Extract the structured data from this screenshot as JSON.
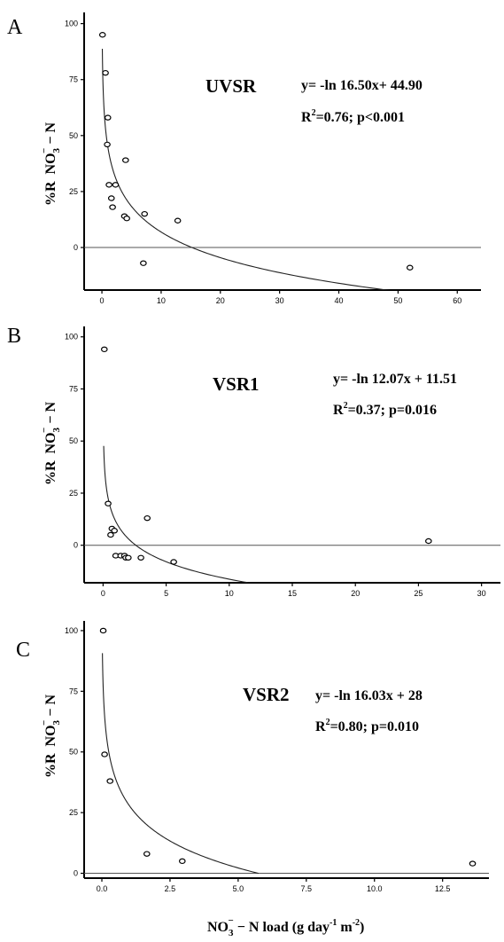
{
  "figure": {
    "ylabel": "%R  NO3 − N",
    "xlabel": "NO3 − N load (g day-1 m-2)"
  },
  "chart_data": [
    {
      "type": "scatter",
      "panel_label": "A",
      "site": "UVSR",
      "equation": "y= -ln 16.50x+ 44.90",
      "stats": "R2=0.76; p<0.001",
      "xlim": [
        -3,
        64
      ],
      "ylim": [
        -19,
        105
      ],
      "xticks": [
        0,
        10,
        20,
        30,
        40,
        50,
        60
      ],
      "xtick_labels": [
        "0",
        "10",
        "20",
        "30",
        "40",
        "50",
        "60"
      ],
      "yticks": [
        0,
        25,
        50,
        75,
        100
      ],
      "ytick_labels": [
        "0",
        "25",
        "50",
        "75",
        "100"
      ],
      "fit": {
        "a": -16.5,
        "b": 44.9,
        "x_start": 0.07,
        "x_end": 50.0
      },
      "series": [
        {
          "x": [
            0.1,
            0.6,
            1.0,
            0.9,
            1.2,
            1.6,
            2.3,
            1.8,
            4.0,
            3.8,
            4.2,
            7.2,
            12.8,
            7.0,
            52.0
          ],
          "y": [
            95,
            78,
            58,
            46,
            28,
            22,
            28,
            18,
            39,
            14,
            13,
            15,
            12,
            -7,
            -9
          ]
        }
      ]
    },
    {
      "type": "scatter",
      "panel_label": "B",
      "site": "VSR1",
      "equation": "y= -ln 12.07x + 11.51",
      "stats": "R2=0.37; p=0.016",
      "xlim": [
        -1.5,
        31.5
      ],
      "ylim": [
        -18,
        105
      ],
      "xticks": [
        0,
        5,
        10,
        15,
        20,
        25,
        30
      ],
      "xtick_labels": [
        "0",
        "5",
        "10",
        "15",
        "20",
        "25",
        "30"
      ],
      "yticks": [
        0,
        25,
        50,
        75,
        100
      ],
      "ytick_labels": [
        "0",
        "25",
        "50",
        "75",
        "100"
      ],
      "fit": {
        "a": -12.07,
        "b": 11.51,
        "x_start": 0.05,
        "x_end": 13.5
      },
      "series": [
        {
          "x": [
            0.1,
            0.4,
            0.6,
            0.7,
            0.9,
            1.0,
            1.4,
            1.7,
            1.8,
            2.0,
            3.0,
            3.5,
            5.6,
            25.8
          ],
          "y": [
            94,
            20,
            5,
            8,
            7,
            -5,
            -5,
            -5,
            -6,
            -6,
            -6,
            13,
            -8,
            2
          ]
        }
      ]
    },
    {
      "type": "scatter",
      "panel_label": "C",
      "site": "VSR2",
      "equation": "y= -ln 16.03x + 28",
      "stats": "R2=0.80; p=0.010",
      "xlim": [
        -0.65,
        14.2
      ],
      "ylim": [
        -2,
        104
      ],
      "xticks": [
        0,
        2.5,
        5,
        7.5,
        10,
        12.5
      ],
      "xtick_labels": [
        "0.0",
        "2.5",
        "5.0",
        "7.5",
        "10.0",
        "12.5"
      ],
      "yticks": [
        0,
        25,
        50,
        75,
        100
      ],
      "ytick_labels": [
        "0",
        "25",
        "50",
        "75",
        "100"
      ],
      "fit": {
        "a": -16.03,
        "b": 28,
        "x_start": 0.02,
        "x_end": 5.75
      },
      "series": [
        {
          "x": [
            0.05,
            0.1,
            0.3,
            1.65,
            2.95,
            13.6
          ],
          "y": [
            100,
            49,
            38,
            8,
            5,
            4
          ]
        }
      ]
    }
  ]
}
